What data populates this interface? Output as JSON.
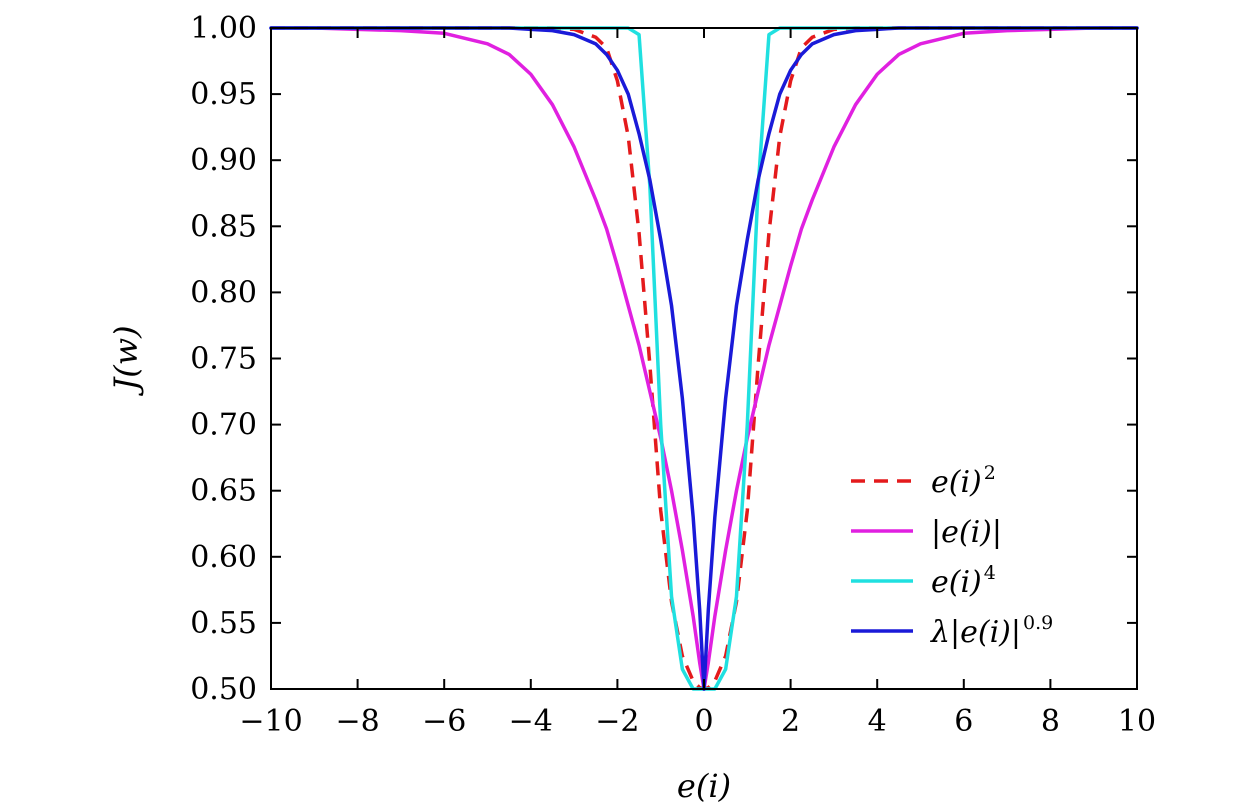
{
  "chart_data": {
    "type": "line",
    "title": "",
    "xlabel": "e(i)",
    "ylabel": "J(w)",
    "xlim": [
      -10,
      10
    ],
    "ylim": [
      0.5,
      1.0
    ],
    "grid": false,
    "legend_position": "bottom-right",
    "x_ticks": [
      -10,
      -8,
      -6,
      -4,
      -2,
      0,
      2,
      4,
      6,
      8,
      10
    ],
    "x_tick_labels": [
      "−10",
      "−8",
      "−6",
      "−4",
      "−2",
      "0",
      "2",
      "4",
      "6",
      "8",
      "10"
    ],
    "y_ticks": [
      0.5,
      0.55,
      0.6,
      0.65,
      0.7,
      0.75,
      0.8,
      0.85,
      0.9,
      0.95,
      1.0
    ],
    "y_tick_labels": [
      "0.50",
      "0.55",
      "0.60",
      "0.65",
      "0.70",
      "0.75",
      "0.80",
      "0.85",
      "0.90",
      "0.95",
      "1.00"
    ],
    "x": [
      -10,
      -9,
      -8,
      -7,
      -6,
      -5,
      -4.5,
      -4,
      -3.5,
      -3,
      -2.5,
      -2.25,
      -2,
      -1.75,
      -1.5,
      -1.25,
      -1,
      -0.75,
      -0.5,
      -0.25,
      -0.1,
      0,
      0.1,
      0.25,
      0.5,
      0.75,
      1,
      1.25,
      1.5,
      1.75,
      2,
      2.25,
      2.5,
      3,
      3.5,
      4,
      4.5,
      5,
      6,
      7,
      8,
      9,
      10
    ],
    "series": [
      {
        "name": "e(i)^2",
        "label_base": "e(i)",
        "label_sup": "2",
        "color": "#e41a1c",
        "dash": "dashed",
        "values": [
          1.0,
          1.0,
          1.0,
          1.0,
          1.0,
          1.0,
          1.0,
          1.0,
          1.0,
          0.999,
          0.993,
          0.985,
          0.96,
          0.918,
          0.845,
          0.745,
          0.635,
          0.566,
          0.525,
          0.506,
          0.501,
          0.5,
          0.501,
          0.506,
          0.525,
          0.566,
          0.635,
          0.745,
          0.845,
          0.918,
          0.96,
          0.985,
          0.993,
          0.999,
          1.0,
          1.0,
          1.0,
          1.0,
          1.0,
          1.0,
          1.0,
          1.0,
          1.0
        ]
      },
      {
        "name": "|e(i)|",
        "label_base": "|e(i)|",
        "label_sup": "",
        "color": "#e020e0",
        "dash": "solid",
        "values": [
          1.0,
          1.0,
          0.999,
          0.998,
          0.996,
          0.988,
          0.98,
          0.965,
          0.942,
          0.91,
          0.87,
          0.848,
          0.82,
          0.79,
          0.76,
          0.725,
          0.69,
          0.65,
          0.605,
          0.555,
          0.52,
          0.5,
          0.52,
          0.555,
          0.605,
          0.65,
          0.69,
          0.725,
          0.76,
          0.79,
          0.82,
          0.848,
          0.87,
          0.91,
          0.942,
          0.965,
          0.98,
          0.988,
          0.996,
          0.998,
          0.999,
          1.0,
          1.0
        ]
      },
      {
        "name": "e(i)^4",
        "label_base": "e(i)",
        "label_sup": "4",
        "color": "#20e0e0",
        "dash": "solid",
        "values": [
          1.0,
          1.0,
          1.0,
          1.0,
          1.0,
          1.0,
          1.0,
          1.0,
          1.0,
          1.0,
          1.0,
          1.0,
          1.0,
          1.0,
          0.995,
          0.88,
          0.7,
          0.57,
          0.515,
          0.5,
          0.5,
          0.5,
          0.5,
          0.5,
          0.515,
          0.57,
          0.7,
          0.88,
          0.995,
          1.0,
          1.0,
          1.0,
          1.0,
          1.0,
          1.0,
          1.0,
          1.0,
          1.0,
          1.0,
          1.0,
          1.0,
          1.0,
          1.0
        ]
      },
      {
        "name": "λ|e(i)|^0.9",
        "label_base": "λ|e(i)|",
        "label_sup": "0.9",
        "color": "#1a1ad8",
        "dash": "solid",
        "values": [
          1.0,
          1.0,
          1.0,
          1.0,
          1.0,
          1.0,
          1.0,
          0.999,
          0.998,
          0.995,
          0.988,
          0.98,
          0.968,
          0.95,
          0.92,
          0.885,
          0.84,
          0.79,
          0.72,
          0.63,
          0.56,
          0.5,
          0.56,
          0.63,
          0.72,
          0.79,
          0.84,
          0.885,
          0.92,
          0.95,
          0.968,
          0.98,
          0.988,
          0.995,
          0.998,
          0.999,
          1.0,
          1.0,
          1.0,
          1.0,
          1.0,
          1.0,
          1.0
        ]
      }
    ]
  }
}
